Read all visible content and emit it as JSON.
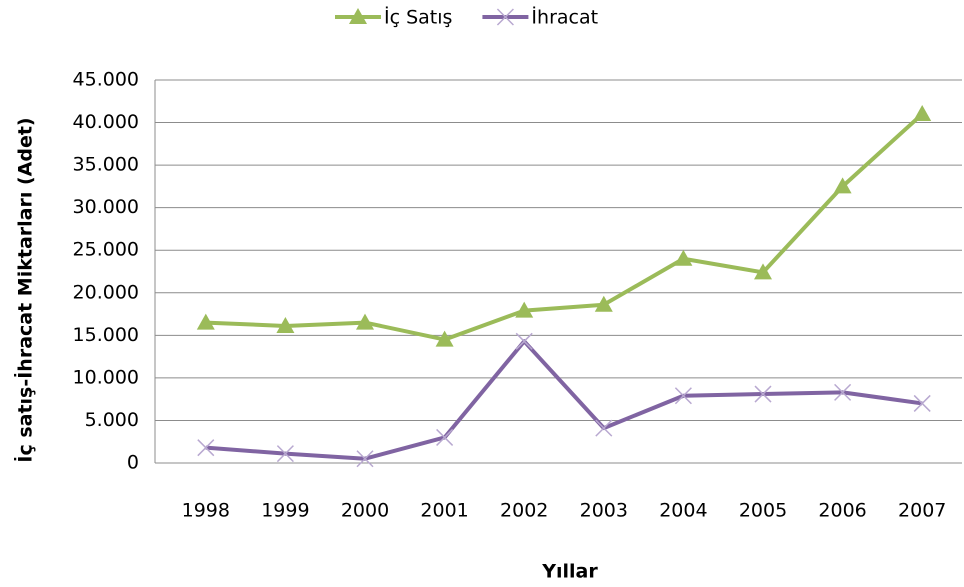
{
  "chart_data": {
    "type": "line",
    "categories": [
      "1998",
      "1999",
      "2000",
      "2001",
      "2002",
      "2003",
      "2004",
      "2005",
      "2006",
      "2007"
    ],
    "series": [
      {
        "name": "İç Satış",
        "color": "#9bbb59",
        "marker": "triangle",
        "values": [
          16500,
          16100,
          16500,
          14500,
          17900,
          18600,
          24000,
          22400,
          32500,
          41000
        ]
      },
      {
        "name": "İhracat",
        "color": "#8064a2",
        "marker": "x",
        "values": [
          1800,
          1100,
          500,
          3000,
          14300,
          4100,
          7900,
          8100,
          8300,
          7000
        ]
      }
    ],
    "ylim": [
      0,
      45000
    ],
    "yticks": [
      0,
      {
        "value": 5000,
        "label": "5.000"
      },
      {
        "value": 10000,
        "label": "10.000"
      },
      {
        "value": 15000,
        "label": "15.000"
      },
      {
        "value": 20000,
        "label": "20.000"
      },
      {
        "value": 25000,
        "label": "25.000"
      },
      {
        "value": 30000,
        "label": "30.000"
      },
      {
        "value": 35000,
        "label": "35.000"
      },
      {
        "value": 40000,
        "label": "40.000"
      },
      {
        "value": 45000,
        "label": "45.000"
      }
    ],
    "ylabel": "İç satış-İhracat Miktarları (Adet)",
    "xlabel": "Yıllar",
    "grid": true,
    "legend": "top"
  }
}
